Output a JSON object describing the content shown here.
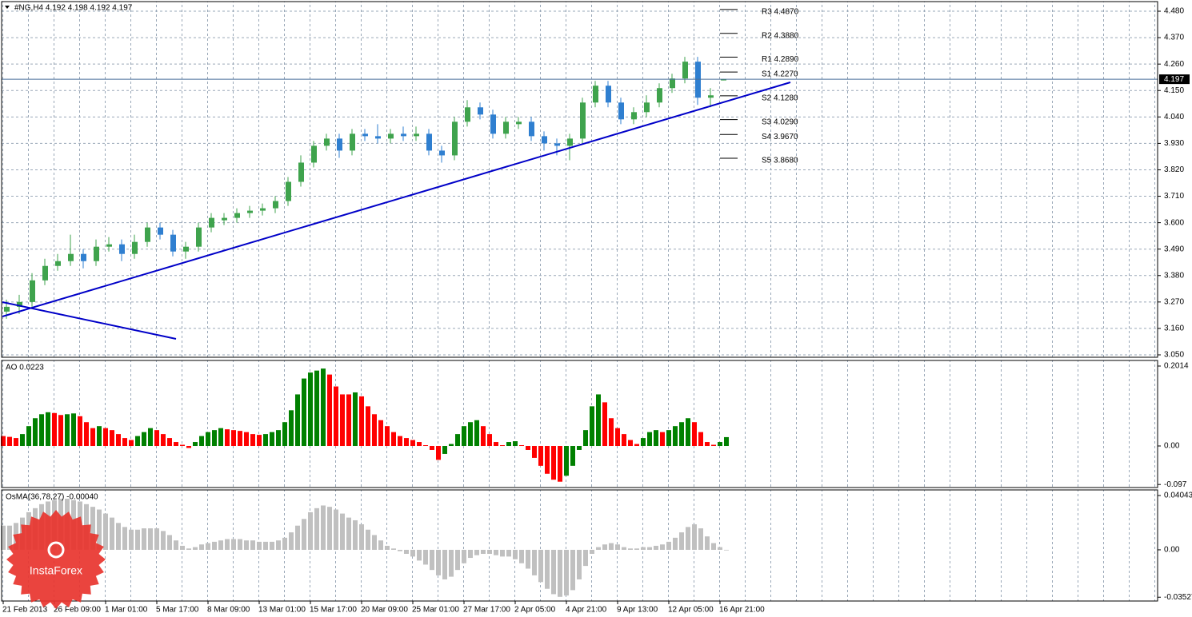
{
  "watermark": "InstaForex",
  "chart_data": [
    {
      "type": "candlestick",
      "title": "#NG,H4  4.192 4.198 4.192 4.197",
      "up_color": "#3fa34d",
      "down_color": "#2f7fd0",
      "open": [
        3.23,
        3.25,
        3.27,
        3.36,
        3.42,
        3.44,
        3.47,
        3.44,
        3.5,
        3.51,
        3.47,
        3.52,
        3.58,
        3.55,
        3.48,
        3.5,
        3.58,
        3.61,
        3.62,
        3.64,
        3.65,
        3.66,
        3.69,
        3.77,
        3.85,
        3.92,
        3.95,
        3.9,
        3.97,
        3.96,
        3.95,
        3.97,
        3.96,
        3.97,
        3.9,
        3.88,
        4.02,
        4.08,
        4.05,
        3.97,
        4.01,
        4.02,
        3.96,
        3.93,
        3.92,
        3.95,
        4.1,
        4.17,
        4.1,
        4.03,
        4.06,
        4.1,
        4.16,
        4.2,
        4.27,
        4.12,
        4.192
      ],
      "high": [
        3.28,
        3.3,
        3.39,
        3.45,
        3.47,
        3.55,
        3.49,
        3.53,
        3.54,
        3.53,
        3.55,
        3.6,
        3.6,
        3.57,
        3.52,
        3.6,
        3.64,
        3.64,
        3.66,
        3.67,
        3.68,
        3.71,
        3.79,
        3.88,
        3.94,
        3.97,
        3.97,
        3.99,
        3.99,
        4.01,
        3.99,
        4.0,
        4.0,
        3.99,
        3.92,
        4.04,
        4.11,
        4.1,
        4.07,
        4.04,
        4.04,
        4.04,
        3.98,
        3.95,
        3.97,
        4.12,
        4.19,
        4.19,
        4.12,
        4.08,
        4.13,
        4.18,
        4.22,
        4.29,
        4.29,
        4.16,
        4.198
      ],
      "low": [
        3.2,
        3.22,
        3.25,
        3.34,
        3.4,
        3.42,
        3.41,
        3.42,
        3.48,
        3.44,
        3.45,
        3.5,
        3.53,
        3.46,
        3.45,
        3.48,
        3.56,
        3.59,
        3.6,
        3.62,
        3.63,
        3.64,
        3.67,
        3.75,
        3.83,
        3.9,
        3.87,
        3.88,
        3.94,
        3.93,
        3.93,
        3.94,
        3.94,
        3.88,
        3.85,
        3.86,
        4.0,
        4.03,
        3.95,
        3.95,
        3.99,
        3.94,
        3.9,
        3.88,
        3.86,
        3.93,
        4.08,
        4.08,
        4.01,
        4.01,
        4.04,
        4.08,
        4.14,
        4.18,
        4.09,
        4.08,
        4.192
      ],
      "close": [
        3.25,
        3.27,
        3.36,
        3.42,
        3.44,
        3.47,
        3.44,
        3.5,
        3.51,
        3.47,
        3.52,
        3.58,
        3.55,
        3.48,
        3.5,
        3.58,
        3.62,
        3.62,
        3.64,
        3.65,
        3.66,
        3.69,
        3.77,
        3.85,
        3.92,
        3.95,
        3.9,
        3.97,
        3.96,
        3.95,
        3.97,
        3.96,
        3.97,
        3.9,
        3.88,
        4.02,
        4.08,
        4.05,
        3.97,
        4.02,
        4.02,
        3.96,
        3.93,
        3.92,
        3.95,
        4.1,
        4.17,
        4.1,
        4.03,
        4.06,
        4.1,
        4.16,
        4.2,
        4.27,
        4.12,
        4.13,
        4.197
      ],
      "current_price": 4.197,
      "current_color": "#4a6f9a",
      "pivots": [
        {
          "label": "R3 4.4870",
          "value": 4.487
        },
        {
          "label": "R2 4.3880",
          "value": 4.388
        },
        {
          "label": "R1 4.2890",
          "value": 4.289
        },
        {
          "label": "S1 4.2270",
          "value": 4.227
        },
        {
          "label": "S2 4.1280",
          "value": 4.128
        },
        {
          "label": "S3 4.0290",
          "value": 4.029
        },
        {
          "label": "S4 3.9670",
          "value": 3.967
        },
        {
          "label": "S5 3.8680",
          "value": 3.868
        }
      ],
      "ylim": [
        3.04,
        4.52
      ],
      "yticks": [
        {
          "value": 3.05,
          "label": "3.050"
        },
        {
          "value": 3.16,
          "label": "3.160"
        },
        {
          "value": 3.27,
          "label": "3.270"
        },
        {
          "value": 3.38,
          "label": "3.380"
        },
        {
          "value": 3.49,
          "label": "3.490"
        },
        {
          "value": 3.6,
          "label": "3.600"
        },
        {
          "value": 3.71,
          "label": "3.710"
        },
        {
          "value": 3.82,
          "label": "3.820"
        },
        {
          "value": 3.93,
          "label": "3.930"
        },
        {
          "value": 4.04,
          "label": "4.040"
        },
        {
          "value": 4.15,
          "label": "4.150"
        },
        {
          "value": 4.26,
          "label": "4.260"
        },
        {
          "value": 4.37,
          "label": "4.370"
        },
        {
          "value": 4.48,
          "label": "4.480"
        }
      ],
      "grid": true
    },
    {
      "type": "bar",
      "title": "AO 0.0223",
      "up_color": "#008000",
      "down_color": "#ff0000",
      "values": [
        0.025,
        0.023,
        0.02,
        0.03,
        0.05,
        0.07,
        0.08,
        0.085,
        0.083,
        0.078,
        0.08,
        0.082,
        0.075,
        0.06,
        0.045,
        0.05,
        0.045,
        0.04,
        0.03,
        0.02,
        0.015,
        0.025,
        0.035,
        0.045,
        0.04,
        0.03,
        0.02,
        0.01,
        0.003,
        -0.005,
        0.01,
        0.025,
        0.035,
        0.04,
        0.045,
        0.042,
        0.04,
        0.038,
        0.035,
        0.03,
        0.028,
        0.03,
        0.035,
        0.04,
        0.06,
        0.09,
        0.13,
        0.17,
        0.185,
        0.19,
        0.195,
        0.18,
        0.15,
        0.13,
        0.13,
        0.135,
        0.125,
        0.1,
        0.08,
        0.065,
        0.05,
        0.035,
        0.025,
        0.02,
        0.015,
        0.01,
        0.002,
        -0.01,
        -0.035,
        -0.02,
        0.005,
        0.03,
        0.05,
        0.06,
        0.065,
        0.05,
        0.03,
        0.01,
        0.002,
        0.01,
        0.012,
        0.002,
        -0.01,
        -0.03,
        -0.05,
        -0.07,
        -0.085,
        -0.09,
        -0.075,
        -0.05,
        -0.01,
        0.04,
        0.1,
        0.13,
        0.11,
        0.07,
        0.045,
        0.03,
        0.015,
        0.005,
        0.02,
        0.035,
        0.04,
        0.035,
        0.04,
        0.05,
        0.06,
        0.07,
        0.06,
        0.035,
        0.01,
        0.003,
        0.01,
        0.0223
      ],
      "ylim": [
        -0.1047,
        0.2155
      ],
      "yticks": [
        -0.097,
        {
          "value": 0,
          "label": "0.00"
        },
        0.2014
      ],
      "grid": false
    },
    {
      "type": "bar",
      "title": "OsMA(36,78,27) -0.00040",
      "color": "#c0c0c0",
      "values": [
        0.018,
        0.018,
        0.02,
        0.024,
        0.028,
        0.031,
        0.034,
        0.036,
        0.037,
        0.038,
        0.038,
        0.037,
        0.036,
        0.034,
        0.032,
        0.03,
        0.027,
        0.024,
        0.02,
        0.017,
        0.015,
        0.015,
        0.016,
        0.016,
        0.016,
        0.014,
        0.011,
        0.007,
        0.003,
        0.001,
        0.002,
        0.004,
        0.005,
        0.006,
        0.007,
        0.008,
        0.008,
        0.008,
        0.007,
        0.007,
        0.006,
        0.006,
        0.006,
        0.007,
        0.009,
        0.013,
        0.018,
        0.023,
        0.028,
        0.031,
        0.033,
        0.032,
        0.03,
        0.027,
        0.024,
        0.022,
        0.019,
        0.015,
        0.011,
        0.007,
        0.003,
        0.001,
        -0.001,
        -0.003,
        -0.005,
        -0.008,
        -0.011,
        -0.015,
        -0.019,
        -0.022,
        -0.02,
        -0.015,
        -0.01,
        -0.006,
        -0.004,
        -0.003,
        -0.003,
        -0.004,
        -0.005,
        -0.005,
        -0.007,
        -0.01,
        -0.014,
        -0.019,
        -0.024,
        -0.029,
        -0.033,
        -0.035,
        -0.034,
        -0.03,
        -0.022,
        -0.012,
        -0.003,
        0.002,
        0.004,
        0.005,
        0.004,
        0.002,
        0.001,
        0.001,
        0.002,
        0.002,
        0.003,
        0.004,
        0.006,
        0.009,
        0.013,
        0.017,
        0.019,
        0.016,
        0.01,
        0.005,
        0.002,
        -0.0004
      ],
      "categories": [
        "21 Feb 2013",
        null,
        null,
        null,
        null,
        null,
        null,
        null,
        "26 Feb 09:00",
        null,
        null,
        null,
        null,
        null,
        null,
        null,
        "1 Mar 01:00",
        null,
        null,
        null,
        null,
        null,
        null,
        null,
        "5 Mar 17:00",
        null,
        null,
        null,
        null,
        null,
        null,
        null,
        "8 Mar 09:00",
        null,
        null,
        null,
        null,
        null,
        null,
        null,
        "13 Mar 01:00",
        null,
        null,
        null,
        null,
        null,
        null,
        null,
        "15 Mar 17:00",
        null,
        null,
        null,
        null,
        null,
        null,
        null,
        "20 Mar 09:00",
        null,
        null,
        null,
        null,
        null,
        null,
        null,
        "25 Mar 01:00",
        null,
        null,
        null,
        null,
        null,
        null,
        null,
        "27 Mar 17:00",
        null,
        null,
        null,
        null,
        null,
        null,
        null,
        "2 Apr 05:00",
        null,
        null,
        null,
        null,
        null,
        null,
        null,
        "4 Apr 21:00",
        null,
        null,
        null,
        null,
        null,
        null,
        null,
        "9 Apr 13:00",
        null,
        null,
        null,
        null,
        null,
        null,
        null,
        "12 Apr 05:00",
        null,
        null,
        null,
        null,
        null,
        null,
        null,
        "16 Apr 21:00",
        null
      ],
      "ylim": [
        -0.0381,
        0.04459
      ],
      "yticks": [
        -0.03527,
        {
          "value": 0,
          "label": "0.00"
        },
        0.04043
      ],
      "grid": false
    }
  ]
}
